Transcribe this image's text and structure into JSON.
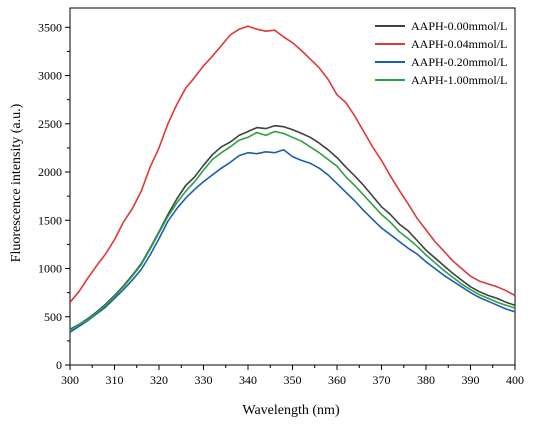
{
  "chart_data": {
    "type": "line",
    "title": "",
    "xlabel": "Wavelength (nm)",
    "ylabel": "Fluorescence intensity (a.u.)",
    "xlim": [
      300,
      400
    ],
    "ylim": [
      0,
      3700
    ],
    "x_ticks": [
      "300",
      "310",
      "320",
      "330",
      "340",
      "350",
      "360",
      "370",
      "380",
      "390",
      "400"
    ],
    "y_ticks": [
      "0",
      "500",
      "1000",
      "1500",
      "2000",
      "2500",
      "3000",
      "3500"
    ],
    "x_tick_values": [
      300,
      310,
      320,
      330,
      340,
      350,
      360,
      370,
      380,
      390,
      400
    ],
    "y_tick_values": [
      0,
      500,
      1000,
      1500,
      2000,
      2500,
      3000,
      3500
    ],
    "grid": false,
    "legend_position": "top-right",
    "x": [
      300,
      302,
      304,
      306,
      308,
      310,
      312,
      314,
      316,
      318,
      320,
      322,
      324,
      326,
      328,
      330,
      332,
      334,
      336,
      338,
      340,
      342,
      344,
      346,
      348,
      350,
      352,
      354,
      356,
      358,
      360,
      362,
      364,
      366,
      368,
      370,
      372,
      374,
      376,
      378,
      380,
      382,
      384,
      386,
      388,
      390,
      392,
      394,
      396,
      398,
      400
    ],
    "series": [
      {
        "name": "AAPH-0.00mmol/L",
        "color": "#404040",
        "values": [
          370,
          420,
          480,
          550,
          630,
          720,
          820,
          930,
          1050,
          1210,
          1380,
          1560,
          1720,
          1860,
          1950,
          2070,
          2180,
          2260,
          2310,
          2380,
          2420,
          2460,
          2450,
          2480,
          2470,
          2440,
          2400,
          2360,
          2300,
          2230,
          2150,
          2050,
          1960,
          1860,
          1750,
          1640,
          1560,
          1460,
          1390,
          1290,
          1190,
          1110,
          1030,
          950,
          880,
          810,
          760,
          720,
          690,
          650,
          620
        ]
      },
      {
        "name": "AAPH-0.04mmol/L",
        "color": "#e0373b",
        "values": [
          650,
          760,
          900,
          1030,
          1150,
          1300,
          1480,
          1620,
          1800,
          2050,
          2250,
          2500,
          2700,
          2870,
          2980,
          3100,
          3200,
          3310,
          3420,
          3480,
          3510,
          3480,
          3460,
          3470,
          3400,
          3340,
          3260,
          3170,
          3080,
          2960,
          2800,
          2720,
          2580,
          2420,
          2260,
          2120,
          1960,
          1810,
          1670,
          1520,
          1400,
          1280,
          1180,
          1080,
          1000,
          920,
          870,
          840,
          810,
          770,
          720
        ]
      },
      {
        "name": "AAPH-0.20mmol/L",
        "color": "#1a5fb4",
        "values": [
          340,
          400,
          460,
          530,
          600,
          690,
          780,
          880,
          990,
          1140,
          1310,
          1490,
          1620,
          1730,
          1820,
          1900,
          1970,
          2040,
          2100,
          2170,
          2200,
          2190,
          2210,
          2200,
          2230,
          2160,
          2120,
          2090,
          2040,
          1970,
          1880,
          1790,
          1700,
          1600,
          1510,
          1420,
          1350,
          1280,
          1210,
          1150,
          1070,
          1000,
          930,
          870,
          810,
          750,
          700,
          660,
          620,
          580,
          550
        ]
      },
      {
        "name": "AAPH-1.00mmol/L",
        "color": "#2ea043",
        "values": [
          360,
          420,
          470,
          540,
          620,
          710,
          810,
          920,
          1040,
          1200,
          1370,
          1540,
          1680,
          1800,
          1900,
          2020,
          2130,
          2200,
          2260,
          2330,
          2360,
          2410,
          2380,
          2420,
          2400,
          2360,
          2320,
          2260,
          2200,
          2130,
          2060,
          1950,
          1860,
          1760,
          1660,
          1560,
          1480,
          1380,
          1310,
          1230,
          1140,
          1060,
          980,
          910,
          840,
          780,
          730,
          690,
          650,
          620,
          590
        ]
      }
    ]
  }
}
